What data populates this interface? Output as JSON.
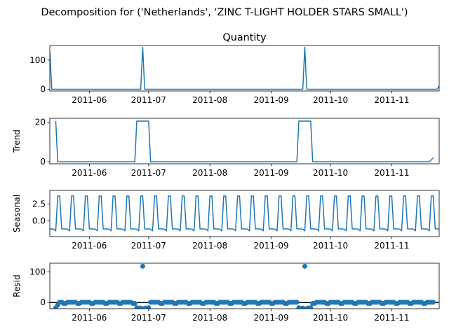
{
  "figure": {
    "suptitle": "Decomposition for ('Netherlands', 'ZINC T-LIGHT HOLDER STARS SMALL')"
  },
  "colors": {
    "line": "#1f77b4",
    "axes": "#000000",
    "background": "#ffffff"
  },
  "chart_data": [
    {
      "type": "line",
      "title": "Quantity",
      "ylabel": "",
      "xlim": [
        "2011-05-12",
        "2011-11-25"
      ],
      "ylim": [
        -6,
        150
      ],
      "yticks": [
        0,
        100
      ],
      "ytick_labels": [
        "0",
        "100"
      ],
      "xticks": [
        "2011-06-01",
        "2011-07-01",
        "2011-08-01",
        "2011-09-01",
        "2011-10-01",
        "2011-11-01"
      ],
      "xtick_labels": [
        "2011-06",
        "2011-07",
        "2011-08",
        "2011-09",
        "2011-10",
        "2011-11"
      ],
      "points": [
        [
          "2011-05-12",
          130
        ],
        [
          "2011-05-13",
          0
        ],
        [
          "2011-06-27",
          0
        ],
        [
          "2011-06-28",
          144
        ],
        [
          "2011-06-29",
          0
        ],
        [
          "2011-09-17",
          0
        ],
        [
          "2011-09-18",
          144
        ],
        [
          "2011-09-19",
          0
        ],
        [
          "2011-11-24",
          0
        ],
        [
          "2011-11-25",
          12
        ]
      ]
    },
    {
      "type": "line",
      "title": "",
      "ylabel": "Trend",
      "xlim": [
        "2011-05-12",
        "2011-11-25"
      ],
      "ylim": [
        -1,
        22
      ],
      "yticks": [
        0,
        20
      ],
      "ytick_labels": [
        "0",
        "20"
      ],
      "xticks": [
        "2011-06-01",
        "2011-07-01",
        "2011-08-01",
        "2011-09-01",
        "2011-10-01",
        "2011-11-01"
      ],
      "xtick_labels": [
        "2011-06",
        "2011-07",
        "2011-08",
        "2011-09",
        "2011-10",
        "2011-11"
      ],
      "points": [
        [
          "2011-05-15",
          20.6
        ],
        [
          "2011-05-16",
          0
        ],
        [
          "2011-06-24",
          0
        ],
        [
          "2011-06-25",
          20.6
        ],
        [
          "2011-07-01",
          20.6
        ],
        [
          "2011-07-02",
          0
        ],
        [
          "2011-09-14",
          0
        ],
        [
          "2011-09-15",
          20.6
        ],
        [
          "2011-09-21",
          20.6
        ],
        [
          "2011-09-22",
          0
        ],
        [
          "2011-11-20",
          0
        ],
        [
          "2011-11-22",
          2
        ]
      ]
    },
    {
      "type": "line",
      "title": "",
      "ylabel": "Seasonal",
      "xlim": [
        "2011-05-12",
        "2011-11-25"
      ],
      "ylim": [
        -2.3,
        4.5
      ],
      "yticks": [
        0,
        2.5
      ],
      "ytick_labels": [
        "0.0",
        "2.5"
      ],
      "xticks": [
        "2011-06-01",
        "2011-07-01",
        "2011-08-01",
        "2011-09-01",
        "2011-10-01",
        "2011-11-01"
      ],
      "xtick_labels": [
        "2011-06",
        "2011-07",
        "2011-08",
        "2011-09",
        "2011-10",
        "2011-11"
      ],
      "period_days": 7,
      "start": "2011-05-12",
      "end": "2011-11-25",
      "pattern": [
        -1.17,
        -1.17,
        -1.2,
        -1.45,
        3.68,
        3.68,
        -1.17
      ]
    },
    {
      "type": "scatter",
      "title": "",
      "ylabel": "Resid",
      "xlim": [
        "2011-05-12",
        "2011-11-25"
      ],
      "ylim": [
        -20,
        128
      ],
      "yticks": [
        0,
        100
      ],
      "ytick_labels": [
        "0",
        "100"
      ],
      "xticks": [
        "2011-06-01",
        "2011-07-01",
        "2011-08-01",
        "2011-09-01",
        "2011-10-01",
        "2011-11-01"
      ],
      "xtick_labels": [
        "2011-06",
        "2011-07",
        "2011-08",
        "2011-09",
        "2011-10",
        "2011-11"
      ],
      "baseline": 0,
      "start": "2011-05-15",
      "end": "2011-11-22",
      "default_pattern": [
        1,
        1,
        1,
        1,
        -3,
        -3,
        1
      ],
      "overrides": [
        [
          "2011-05-15",
          -17
        ],
        [
          "2011-05-16",
          -8
        ],
        [
          "2011-06-25",
          -17
        ],
        [
          "2011-06-26",
          -19
        ],
        [
          "2011-06-27",
          -18
        ],
        [
          "2011-06-28",
          118
        ],
        [
          "2011-06-29",
          -19
        ],
        [
          "2011-06-30",
          -18
        ],
        [
          "2011-07-01",
          -17
        ],
        [
          "2011-09-15",
          -17
        ],
        [
          "2011-09-16",
          -19
        ],
        [
          "2011-09-17",
          -18
        ],
        [
          "2011-09-18",
          118
        ],
        [
          "2011-09-19",
          -19
        ],
        [
          "2011-09-20",
          -18
        ],
        [
          "2011-09-21",
          -17
        ]
      ]
    }
  ]
}
